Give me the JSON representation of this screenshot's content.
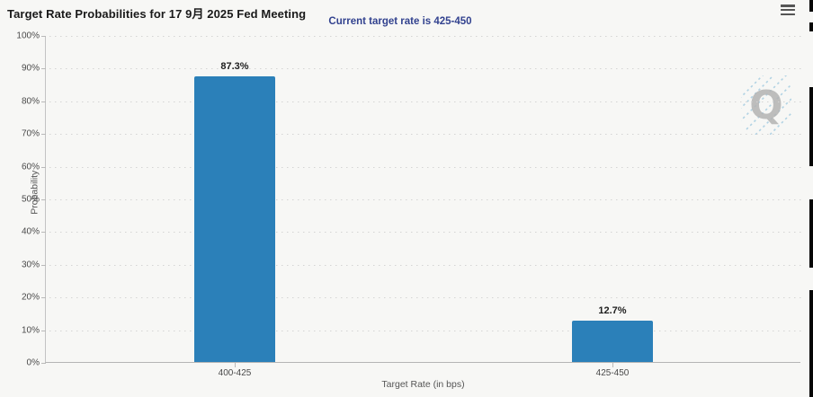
{
  "header": {
    "title": "Target Rate Probabilities for 17 9月 2025 Fed Meeting",
    "menu_icon": "hamburger-menu-icon"
  },
  "subtitle": "Current target rate is 425-450",
  "chart_data": {
    "type": "bar",
    "title": "Target Rate Probabilities for 17 9月 2025 Fed Meeting",
    "subtitle": "Current target rate is 425-450",
    "categories": [
      "400-425",
      "425-450"
    ],
    "values": [
      87.3,
      12.7
    ],
    "value_labels": [
      "87.3%",
      "12.7%"
    ],
    "xlabel": "Target Rate (in bps)",
    "ylabel": "Probability",
    "ylim": [
      0,
      100
    ],
    "y_tick_step": 10,
    "y_tick_labels": [
      "0%",
      "10%",
      "20%",
      "30%",
      "40%",
      "50%",
      "60%",
      "70%",
      "80%",
      "90%",
      "100%"
    ],
    "grid": "horizontal-dotted",
    "legend": "none",
    "bar_color": "#2b80b9"
  },
  "watermark": {
    "letter": "Q",
    "name": "quikstrike-logo"
  },
  "colors": {
    "background": "#f7f7f5",
    "bar": "#2b80b9",
    "subtitle": "#32428f",
    "gridline": "#d4d4d4",
    "axis": "#b5b5b5"
  }
}
